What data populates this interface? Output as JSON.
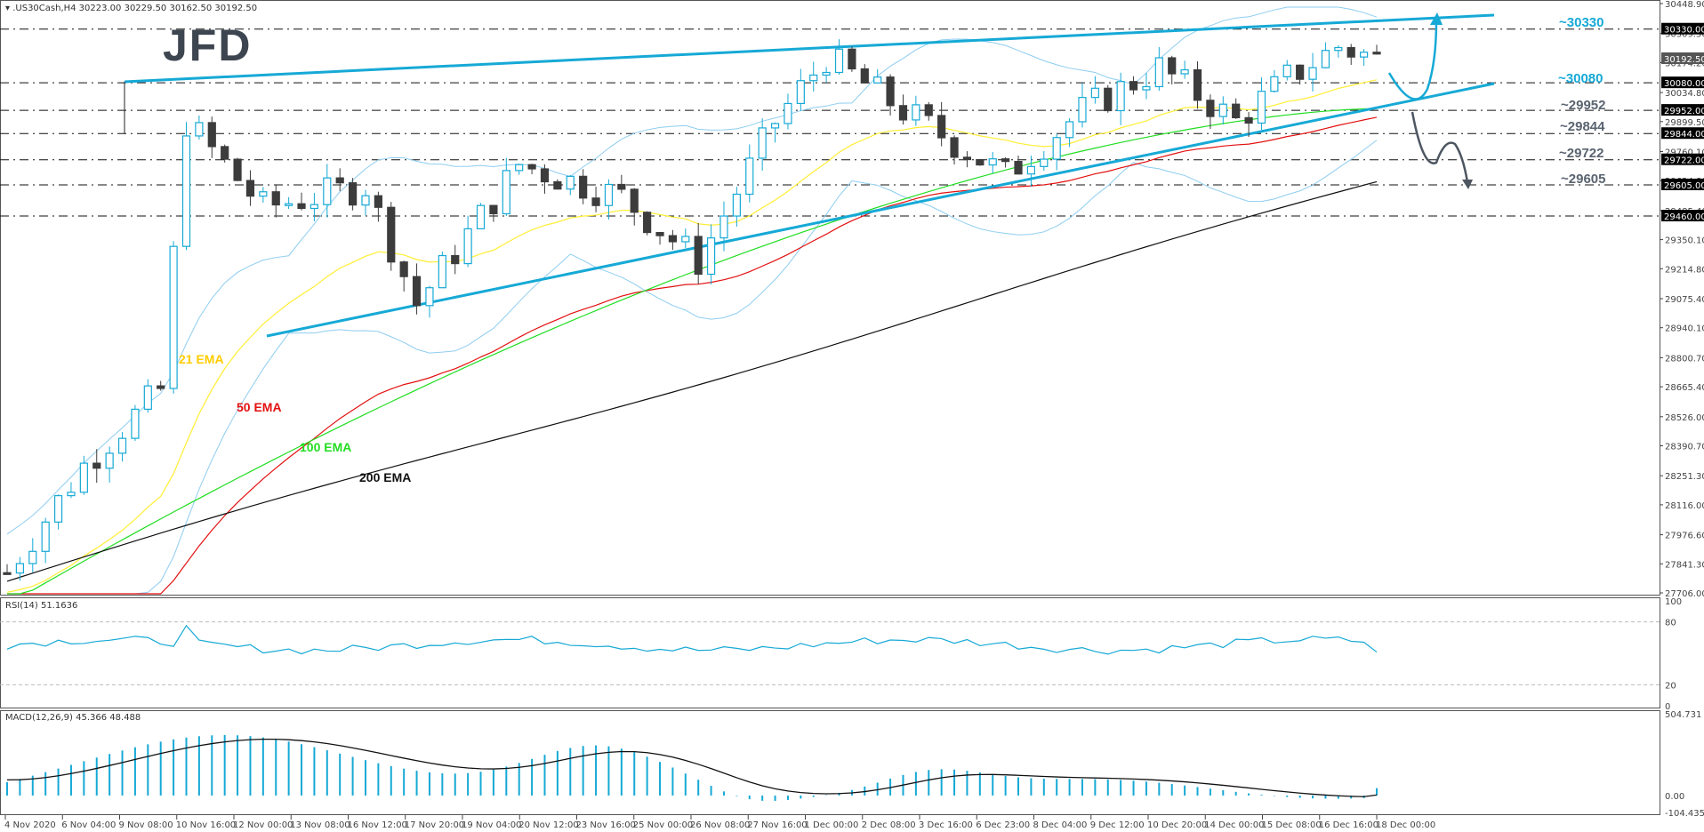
{
  "header": {
    "symbol_line": ".US30Cash,H4  30223.00 30229.50 30162.50 30192.50",
    "dropdown_glyph": "▾"
  },
  "logo": {
    "text": "JFD"
  },
  "rsi": {
    "label": "RSI(14) 51.1636",
    "levels": [
      "100",
      "80",
      "20",
      "0"
    ]
  },
  "macd": {
    "label": "MACD(12,26,9) 45.366 48.488",
    "levels": [
      "504.731",
      "0.00",
      "-104.435"
    ]
  },
  "ema_labels": [
    {
      "text": "21 EMA",
      "color": "#ffcc00"
    },
    {
      "text": "50 EMA",
      "color": "#e31010"
    },
    {
      "text": "100 EMA",
      "color": "#22dd22"
    },
    {
      "text": "200 EMA",
      "color": "#111111"
    }
  ],
  "level_labels": [
    {
      "text": "~30330",
      "color": "#16a9d6"
    },
    {
      "text": "~30080",
      "color": "#16a9d6"
    },
    {
      "text": "~29952",
      "color": "#5a6470"
    },
    {
      "text": "~29844",
      "color": "#5a6470"
    },
    {
      "text": "~29722",
      "color": "#5a6470"
    },
    {
      "text": "~29605",
      "color": "#5a6470"
    }
  ],
  "price_axis": {
    "ticks": [
      "30448.90",
      "30309.50",
      "30174.20",
      "30034.80",
      "29899.50",
      "29760.10",
      "29624.80",
      "29485.40",
      "29350.10",
      "29214.80",
      "29075.40",
      "28940.10",
      "28800.70",
      "28665.40",
      "28526.00",
      "28390.70",
      "28251.30",
      "28116.00",
      "27976.60",
      "27841.30",
      "27706.00"
    ],
    "highlighted": [
      "30330.00",
      "30192.50",
      "30080.00",
      "29952.00",
      "29844.00",
      "29722.00",
      "29605.00",
      "29460.00"
    ]
  },
  "time_axis": [
    "4 Nov 2020",
    "6 Nov 04:00",
    "9 Nov 08:00",
    "10 Nov 16:00",
    "12 Nov 00:00",
    "13 Nov 08:00",
    "16 Nov 12:00",
    "17 Nov 20:00",
    "19 Nov 04:00",
    "20 Nov 12:00",
    "23 Nov 16:00",
    "25 Nov 00:00",
    "26 Nov 08:00",
    "27 Nov 16:00",
    "1 Dec 00:00",
    "2 Dec 08:00",
    "3 Dec 16:00",
    "6 Dec 23:00",
    "8 Dec 04:00",
    "9 Dec 12:00",
    "10 Dec 20:00",
    "14 Dec 00:00",
    "15 Dec 08:00",
    "16 Dec 16:00",
    "18 Dec 00:00"
  ],
  "colors": {
    "bull": "#16a9d6",
    "bear": "#3c3c3c",
    "trendline": "#16a9d6",
    "bollinger": "#8ecdf0",
    "ema21": "#ffee33",
    "ema50": "#e31010",
    "ema100": "#22dd22",
    "ema200": "#111111",
    "rsi": "#16a9d6",
    "macd_hist": "#16a9d6",
    "macd_signal": "#111111",
    "arrow_up": "#16a9d6",
    "arrow_down": "#4d5661"
  },
  "chart_data": [
    {
      "type": "candlestick",
      "title": ".US30Cash,H4",
      "last_ohlc": {
        "open": 30223.0,
        "high": 30229.5,
        "low": 30162.5,
        "close": 30192.5
      },
      "ylim": [
        27706.0,
        30448.9
      ],
      "x_tick_labels": [
        "4 Nov 2020",
        "6 Nov 04:00",
        "9 Nov 08:00",
        "10 Nov 16:00",
        "12 Nov 00:00",
        "13 Nov 08:00",
        "16 Nov 12:00",
        "17 Nov 20:00",
        "19 Nov 04:00",
        "20 Nov 12:00",
        "23 Nov 16:00",
        "25 Nov 00:00",
        "26 Nov 08:00",
        "27 Nov 16:00",
        "1 Dec 00:00",
        "2 Dec 08:00",
        "3 Dec 16:00",
        "6 Dec 23:00",
        "8 Dec 04:00",
        "9 Dec 12:00",
        "10 Dec 20:00",
        "14 Dec 00:00",
        "15 Dec 08:00",
        "16 Dec 16:00",
        "18 Dec 00:00"
      ],
      "horizontal_levels": [
        30330,
        30080,
        29952,
        29844,
        29722,
        29605,
        29460
      ],
      "trendlines": [
        {
          "name": "upper",
          "from": {
            "x": "9 Nov 08:00",
            "y": 30080
          },
          "to": {
            "x": "right edge",
            "y": 30400
          }
        },
        {
          "name": "lower",
          "from": {
            "x": "12 Nov 12:00",
            "y": 28920
          },
          "to": {
            "x": "right edge",
            "y": 30080
          }
        }
      ],
      "series": [
        {
          "name": "21 EMA",
          "approx_end": 30120
        },
        {
          "name": "50 EMA",
          "approx_end": 30060
        },
        {
          "name": "100 EMA",
          "approx_end": 29960
        },
        {
          "name": "200 EMA",
          "approx_end": 29610
        }
      ],
      "annotations": [
        "~30330",
        "~30080",
        "~29952",
        "~29844",
        "~29722",
        "~29605",
        "21 EMA",
        "50 EMA",
        "100 EMA",
        "200 EMA"
      ],
      "scenarios": [
        {
          "direction": "up",
          "target": 30330
        },
        {
          "direction": "down",
          "targets": [
            29844,
            29722,
            29605
          ]
        }
      ]
    },
    {
      "type": "line",
      "title": "RSI(14)",
      "last_value": 51.1636,
      "ylim": [
        0,
        100
      ],
      "reference_lines": [
        80,
        20
      ]
    },
    {
      "type": "bar",
      "title": "MACD(12,26,9)",
      "main": 45.366,
      "signal": 48.488,
      "ylim": [
        -104.435,
        504.731
      ]
    }
  ]
}
